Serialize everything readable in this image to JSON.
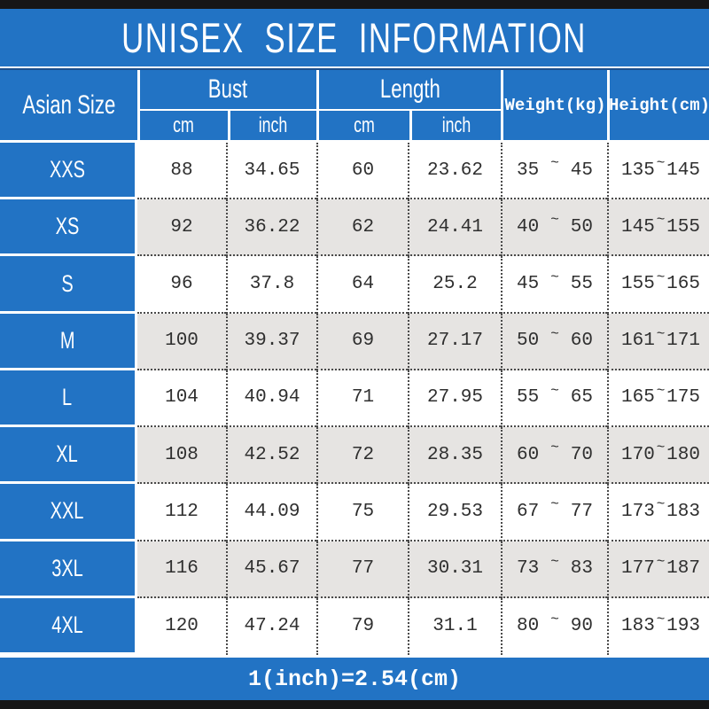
{
  "title": "UNISEX SIZE INFORMATION",
  "header": {
    "size_column": "Asian Size",
    "bust": {
      "label": "Bust",
      "units": [
        "cm",
        "inch"
      ]
    },
    "length": {
      "label": "Length",
      "units": [
        "cm",
        "inch"
      ]
    },
    "weight": "Weight(kg)",
    "height": "Height(cm)"
  },
  "range_separator": "~",
  "rows": [
    {
      "size": "XXS",
      "bust_cm": "88",
      "bust_inch": "34.65",
      "length_cm": "60",
      "length_inch": "23.62",
      "weight_min": "35",
      "weight_max": "45",
      "height_min": "135",
      "height_max": "145"
    },
    {
      "size": "XS",
      "bust_cm": "92",
      "bust_inch": "36.22",
      "length_cm": "62",
      "length_inch": "24.41",
      "weight_min": "40",
      "weight_max": "50",
      "height_min": "145",
      "height_max": "155"
    },
    {
      "size": "S",
      "bust_cm": "96",
      "bust_inch": "37.8",
      "length_cm": "64",
      "length_inch": "25.2",
      "weight_min": "45",
      "weight_max": "55",
      "height_min": "155",
      "height_max": "165"
    },
    {
      "size": "M",
      "bust_cm": "100",
      "bust_inch": "39.37",
      "length_cm": "69",
      "length_inch": "27.17",
      "weight_min": "50",
      "weight_max": "60",
      "height_min": "161",
      "height_max": "171"
    },
    {
      "size": "L",
      "bust_cm": "104",
      "bust_inch": "40.94",
      "length_cm": "71",
      "length_inch": "27.95",
      "weight_min": "55",
      "weight_max": "65",
      "height_min": "165",
      "height_max": "175"
    },
    {
      "size": "XL",
      "bust_cm": "108",
      "bust_inch": "42.52",
      "length_cm": "72",
      "length_inch": "28.35",
      "weight_min": "60",
      "weight_max": "70",
      "height_min": "170",
      "height_max": "180"
    },
    {
      "size": "XXL",
      "bust_cm": "112",
      "bust_inch": "44.09",
      "length_cm": "75",
      "length_inch": "29.53",
      "weight_min": "67",
      "weight_max": "77",
      "height_min": "173",
      "height_max": "183"
    },
    {
      "size": "3XL",
      "bust_cm": "116",
      "bust_inch": "45.67",
      "length_cm": "77",
      "length_inch": "30.31",
      "weight_min": "73",
      "weight_max": "83",
      "height_min": "177",
      "height_max": "187"
    },
    {
      "size": "4XL",
      "bust_cm": "120",
      "bust_inch": "47.24",
      "length_cm": "79",
      "length_inch": "31.1",
      "weight_min": "80",
      "weight_max": "90",
      "height_min": "183",
      "height_max": "193"
    }
  ],
  "footer_note": "1(inch)=2.54(cm)",
  "colors": {
    "accent_blue": "#2273c4",
    "row_alt_gray": "#e6e4e2",
    "bar_black": "#161616",
    "dark_blue_line": "#1b4e8c",
    "text_dark": "#2f2f2f"
  },
  "chart_data": {
    "type": "table",
    "title": "UNISEX SIZE INFORMATION",
    "columns": [
      "Asian Size",
      "Bust cm",
      "Bust inch",
      "Length cm",
      "Length inch",
      "Weight(kg)",
      "Height(cm)"
    ],
    "rows": [
      [
        "XXS",
        88,
        34.65,
        60,
        23.62,
        "35~45",
        "135~145"
      ],
      [
        "XS",
        92,
        36.22,
        62,
        24.41,
        "40~50",
        "145~155"
      ],
      [
        "S",
        96,
        37.8,
        64,
        25.2,
        "45~55",
        "155~165"
      ],
      [
        "M",
        100,
        39.37,
        69,
        27.17,
        "50~60",
        "161~171"
      ],
      [
        "L",
        104,
        40.94,
        71,
        27.95,
        "55~65",
        "165~175"
      ],
      [
        "XL",
        108,
        42.52,
        72,
        28.35,
        "60~70",
        "170~180"
      ],
      [
        "XXL",
        112,
        44.09,
        75,
        29.53,
        "67~77",
        "173~183"
      ],
      [
        "3XL",
        116,
        45.67,
        77,
        30.31,
        "73~83",
        "177~187"
      ],
      [
        "4XL",
        120,
        47.24,
        79,
        31.1,
        "80~90",
        "183~193"
      ]
    ],
    "note": "1(inch)=2.54(cm)"
  }
}
